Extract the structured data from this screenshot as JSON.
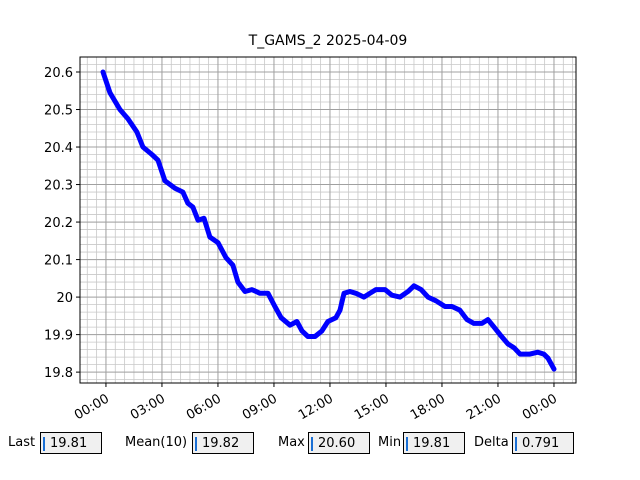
{
  "chart_data": {
    "type": "line",
    "title": "T_GAMS_2 2025-04-09",
    "x": [
      -0.16,
      0.21,
      0.75,
      1.18,
      1.66,
      1.98,
      2.46,
      2.79,
      3.16,
      3.7,
      4.12,
      4.39,
      4.66,
      4.93,
      5.25,
      5.57,
      6.0,
      6.43,
      6.8,
      7.07,
      7.45,
      7.82,
      8.25,
      8.68,
      9.05,
      9.38,
      9.86,
      10.23,
      10.5,
      10.82,
      11.2,
      11.57,
      11.89,
      12.32,
      12.54,
      12.75,
      13.07,
      13.39,
      13.82,
      14.14,
      14.46,
      14.95,
      15.32,
      15.75,
      16.18,
      16.5,
      16.88,
      17.25,
      17.68,
      18.16,
      18.54,
      18.96,
      19.34,
      19.71,
      20.14,
      20.46,
      20.79,
      21.11,
      21.54,
      21.86,
      22.18,
      22.71,
      23.14,
      23.46,
      23.68,
      24.0
    ],
    "series": [
      {
        "color": "#0000ff",
        "values": [
          20.6,
          20.545,
          20.5,
          20.475,
          20.44,
          20.4,
          20.38,
          20.365,
          20.31,
          20.29,
          20.28,
          20.25,
          20.24,
          20.205,
          20.21,
          20.16,
          20.145,
          20.105,
          20.085,
          20.04,
          20.015,
          20.02,
          20.01,
          20.01,
          19.975,
          19.945,
          19.925,
          19.935,
          19.91,
          19.895,
          19.895,
          19.91,
          19.935,
          19.945,
          19.965,
          20.01,
          20.015,
          20.01,
          20.0,
          20.01,
          20.02,
          20.02,
          20.005,
          20.0,
          20.015,
          20.03,
          20.02,
          20.0,
          19.99,
          19.975,
          19.975,
          19.965,
          19.94,
          19.93,
          19.93,
          19.94,
          19.92,
          19.9,
          19.875,
          19.865,
          19.848,
          19.848,
          19.853,
          19.848,
          19.837,
          19.808
        ]
      }
    ],
    "xlim": [
      -1.39,
      25.18
    ],
    "xticks": [
      {
        "value": 0,
        "label": "00:00"
      },
      {
        "value": 3,
        "label": "03:00"
      },
      {
        "value": 6,
        "label": "06:00"
      },
      {
        "value": 9,
        "label": "09:00"
      },
      {
        "value": 12,
        "label": "12:00"
      },
      {
        "value": 15,
        "label": "15:00"
      },
      {
        "value": 18,
        "label": "18:00"
      },
      {
        "value": 21,
        "label": "21:00"
      },
      {
        "value": 24,
        "label": "00:00"
      }
    ],
    "ylim": [
      19.771,
      20.64
    ],
    "yticks": [
      19.8,
      19.9,
      20.0,
      20.1,
      20.2,
      20.3,
      20.4,
      20.5,
      20.6
    ],
    "grid": true
  },
  "stats": [
    {
      "label": "Last",
      "value": "19.81"
    },
    {
      "label": "Mean(10)",
      "value": "19.82"
    },
    {
      "label": "Max",
      "value": "20.60"
    },
    {
      "label": "Min",
      "value": "19.81"
    },
    {
      "label": "Delta",
      "value": "0.791"
    }
  ]
}
